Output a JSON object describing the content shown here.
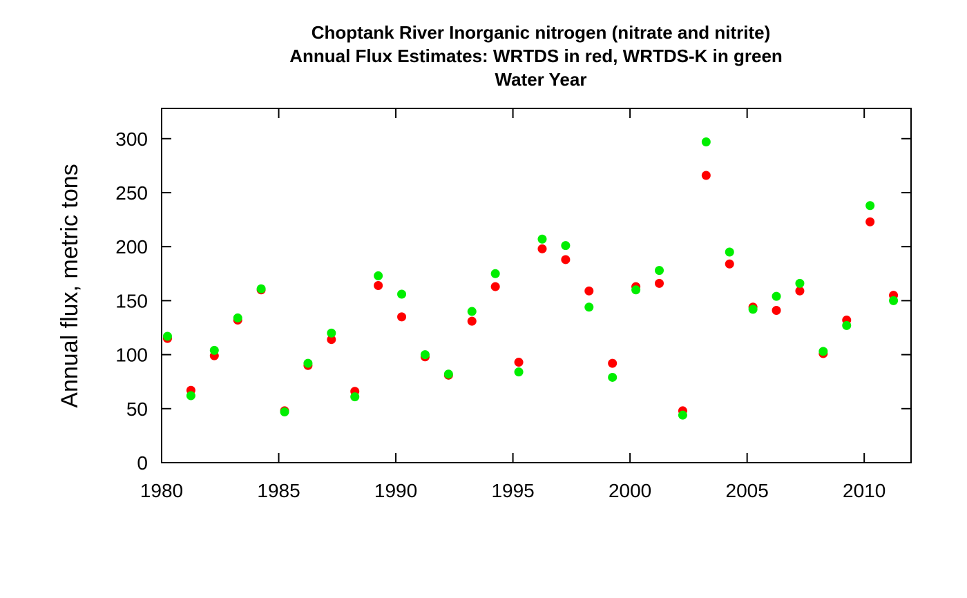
{
  "chart_data": {
    "type": "scatter",
    "title": [
      "Choptank River  Inorganic nitrogen (nitrate and nitrite)",
      "Annual Flux Estimates: WRTDS in red, WRTDS-K in green",
      "Water Year"
    ],
    "xlabel": "",
    "ylabel": "Annual flux, metric tons",
    "xlim": [
      1980,
      2012
    ],
    "ylim": [
      0,
      328
    ],
    "xticks": [
      1980,
      1985,
      1990,
      1995,
      2000,
      2005,
      2010
    ],
    "yticks": [
      0,
      50,
      100,
      150,
      200,
      250,
      300
    ],
    "grid": false,
    "x": [
      1980.25,
      1981.25,
      1982.25,
      1983.25,
      1984.25,
      1985.25,
      1986.25,
      1987.25,
      1988.25,
      1989.25,
      1990.25,
      1991.25,
      1992.25,
      1993.25,
      1994.25,
      1995.25,
      1996.25,
      1997.25,
      1998.25,
      1999.25,
      2000.25,
      2001.25,
      2002.25,
      2003.25,
      2004.25,
      2005.25,
      2006.25,
      2007.25,
      2008.25,
      2009.25,
      2010.25,
      2011.25
    ],
    "series": [
      {
        "color": "#FF0000",
        "values": [
          115,
          67,
          99,
          132,
          160,
          48,
          90,
          114,
          66,
          164,
          135,
          98,
          81,
          131,
          163,
          93,
          198,
          188,
          159,
          92,
          163,
          166,
          48,
          266,
          184,
          144,
          141,
          159,
          101,
          132,
          223,
          155
        ]
      },
      {
        "color": "#00EE00",
        "values": [
          117,
          62,
          104,
          134,
          161,
          47,
          92,
          120,
          61,
          173,
          156,
          100,
          82,
          140,
          175,
          84,
          207,
          201,
          144,
          79,
          160,
          178,
          44,
          297,
          195,
          142,
          154,
          166,
          103,
          127,
          238,
          150
        ]
      }
    ]
  }
}
